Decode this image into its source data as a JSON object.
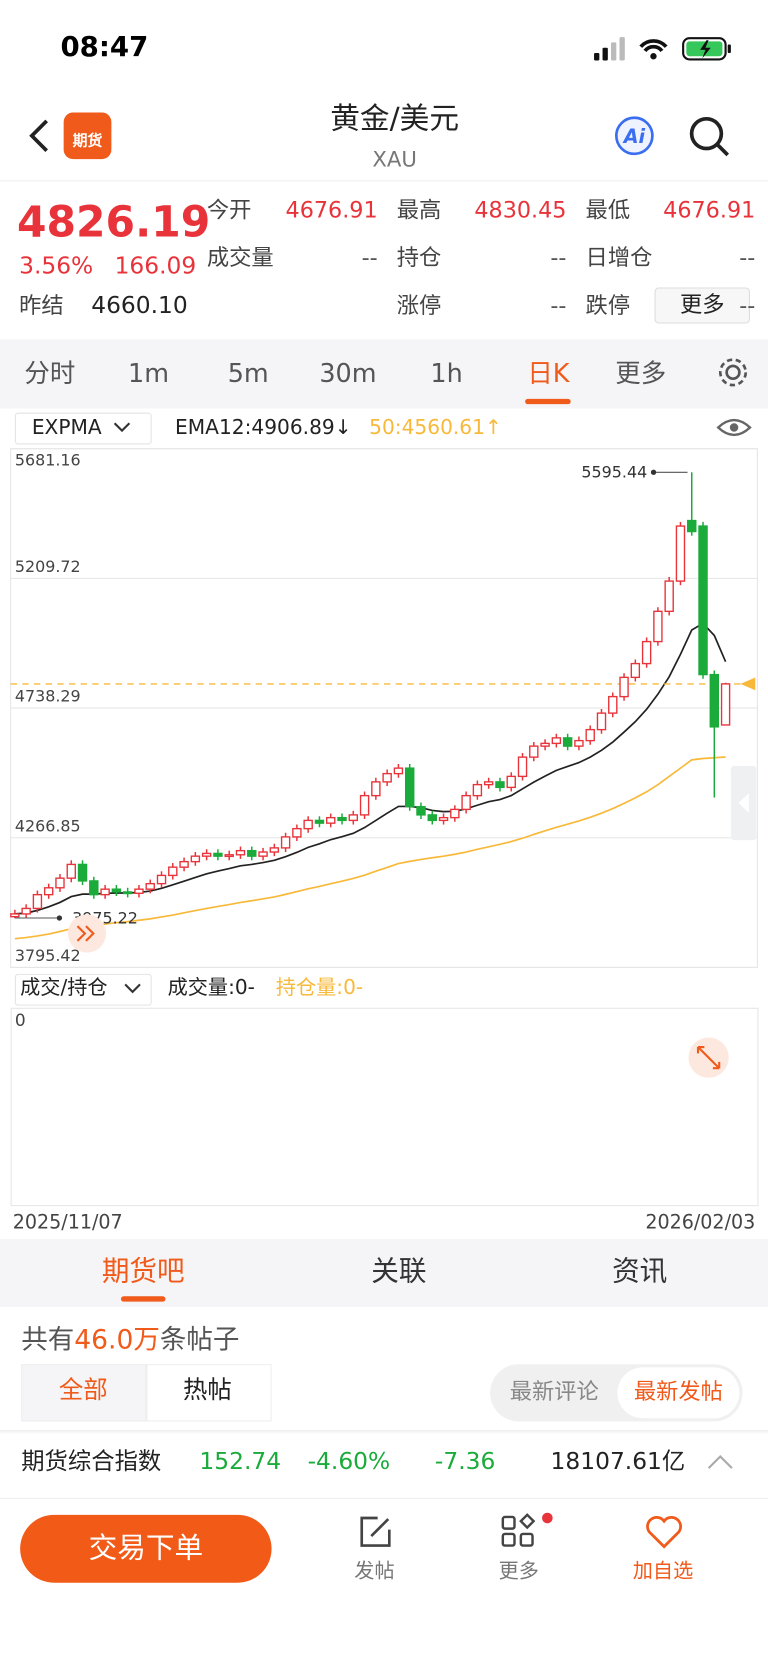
{
  "status": {
    "time": "08:47"
  },
  "header": {
    "badge": "期货",
    "title": "黄金/美元",
    "subtitle": "XAU"
  },
  "quote": {
    "price": "4826.19",
    "change_pct": "3.56%",
    "change": "166.09",
    "fields": [
      [
        {
          "label": "今开",
          "value": "4676.91"
        },
        {
          "label": "最高",
          "value": "4830.45"
        },
        {
          "label": "最低",
          "value": "4676.91"
        }
      ],
      [
        {
          "label": "成交量",
          "value": "--"
        },
        {
          "label": "持仓",
          "value": "--"
        },
        {
          "label": "日增仓",
          "value": "--"
        }
      ],
      [
        {
          "label": "涨停",
          "value": "--"
        },
        {
          "label": "跌停",
          "value": "--"
        }
      ]
    ],
    "prev_settle_label": "昨结",
    "prev_settle": "4660.10",
    "more": "更多"
  },
  "tabs": [
    "分时",
    "1m",
    "5m",
    "30m",
    "1h",
    "日K",
    "更多"
  ],
  "indicator": {
    "name": "EXPMA",
    "ema12": "EMA12:4906.89↓",
    "ema50": "50:4560.61↑"
  },
  "chart_data": {
    "type": "candlestick",
    "ylim": [
      3795.42,
      5681.16
    ],
    "yticks": [
      5681.16,
      5209.72,
      4738.29,
      4266.85,
      3795.42
    ],
    "grid": true,
    "x_start_label": "2025/11/07",
    "x_end_label": "2026/02/03",
    "up_color": "#e8333a",
    "down_color": "#1aab3a",
    "ema12_color": "#222222",
    "ema50_color": "#f8b93a",
    "high_label": 5595.44,
    "low_label": 3975.22,
    "last_price": 4826.19,
    "open": [
      3980,
      3990,
      4010,
      4060,
      4085,
      4120,
      4170,
      4110,
      4060,
      4080,
      4070,
      4065,
      4080,
      4100,
      4130,
      4160,
      4180,
      4200,
      4210,
      4200,
      4205,
      4220,
      4200,
      4215,
      4230,
      4270,
      4300,
      4330,
      4320,
      4340,
      4330,
      4350,
      4420,
      4470,
      4500,
      4520,
      4380,
      4350,
      4330,
      4340,
      4370,
      4420,
      4460,
      4470,
      4450,
      4490,
      4560,
      4600,
      4610,
      4630,
      4600,
      4620,
      4660,
      4720,
      4780,
      4850,
      4900,
      4980,
      5090,
      5200,
      5420,
      5400,
      4860,
      4676.91
    ],
    "high": [
      4005,
      4025,
      4075,
      4100,
      4135,
      4185,
      4185,
      4125,
      4095,
      4095,
      4085,
      4095,
      4115,
      4145,
      4175,
      4195,
      4215,
      4225,
      4225,
      4220,
      4235,
      4235,
      4230,
      4245,
      4285,
      4315,
      4345,
      4345,
      4355,
      4355,
      4365,
      4435,
      4485,
      4515,
      4535,
      4535,
      4395,
      4365,
      4355,
      4385,
      4435,
      4475,
      4485,
      4485,
      4505,
      4575,
      4615,
      4625,
      4645,
      4645,
      4635,
      4675,
      4735,
      4795,
      4865,
      4915,
      4995,
      5105,
      5215,
      5415,
      5595.44,
      5415,
      4875,
      4830.45
    ],
    "low": [
      3975.22,
      3975,
      3995,
      4045,
      4070,
      4105,
      4095,
      4045,
      4045,
      4055,
      4050,
      4050,
      4065,
      4085,
      4115,
      4145,
      4165,
      4185,
      4185,
      4185,
      4190,
      4185,
      4185,
      4200,
      4215,
      4255,
      4285,
      4305,
      4305,
      4315,
      4315,
      4335,
      4405,
      4455,
      4485,
      4365,
      4335,
      4315,
      4315,
      4325,
      4355,
      4405,
      4445,
      4435,
      4435,
      4475,
      4545,
      4585,
      4595,
      4585,
      4585,
      4605,
      4645,
      4705,
      4765,
      4835,
      4885,
      4965,
      5075,
      5185,
      5365,
      4845,
      4413,
      4676.91
    ],
    "close": [
      3990,
      4010,
      4060,
      4085,
      4120,
      4170,
      4110,
      4060,
      4080,
      4070,
      4065,
      4080,
      4100,
      4130,
      4160,
      4180,
      4200,
      4210,
      4200,
      4205,
      4220,
      4200,
      4215,
      4230,
      4270,
      4300,
      4330,
      4320,
      4340,
      4330,
      4350,
      4420,
      4470,
      4500,
      4520,
      4380,
      4350,
      4330,
      4340,
      4370,
      4420,
      4460,
      4470,
      4450,
      4490,
      4560,
      4600,
      4610,
      4630,
      4600,
      4620,
      4660,
      4720,
      4780,
      4850,
      4900,
      4980,
      5090,
      5200,
      5400,
      5380,
      4860,
      4670,
      4826.19
    ],
    "ema12": [
      3990,
      3993,
      4003,
      4016,
      4032,
      4053,
      4062,
      4062,
      4065,
      4066,
      4066,
      4068,
      4073,
      4083,
      4096,
      4109,
      4123,
      4136,
      4146,
      4155,
      4165,
      4170,
      4177,
      4185,
      4198,
      4214,
      4232,
      4245,
      4260,
      4271,
      4283,
      4304,
      4330,
      4356,
      4381,
      4381,
      4376,
      4366,
      4362,
      4363,
      4372,
      4385,
      4398,
      4406,
      4420,
      4445,
      4469,
      4491,
      4512,
      4526,
      4540,
      4560,
      4585,
      4615,
      4651,
      4689,
      4734,
      4789,
      4852,
      4934,
      5022,
      5046,
      5002,
      4906.89
    ],
    "ema50": [
      3900,
      3904,
      3910,
      3917,
      3926,
      3936,
      3943,
      3948,
      3953,
      3958,
      3962,
      3967,
      3972,
      3979,
      3986,
      3994,
      4002,
      4010,
      4017,
      4024,
      4032,
      4038,
      4045,
      4052,
      4061,
      4071,
      4081,
      4090,
      4100,
      4109,
      4119,
      4131,
      4145,
      4159,
      4173,
      4181,
      4188,
      4194,
      4200,
      4207,
      4215,
      4225,
      4234,
      4243,
      4253,
      4265,
      4279,
      4292,
      4305,
      4316,
      4328,
      4341,
      4356,
      4373,
      4392,
      4412,
      4434,
      4460,
      4490,
      4520,
      4550,
      4555,
      4558,
      4560.61
    ]
  },
  "volume": {
    "selector": "成交/持仓",
    "volume": "成交量:0-",
    "open_interest": "持仓量:0-",
    "axis": "0"
  },
  "community": {
    "tabs": [
      "期货吧",
      "关联",
      "资讯"
    ],
    "count_prefix": "共有",
    "count": "46.0万",
    "count_suffix": "条帖子",
    "filters": [
      "全部",
      "热帖"
    ],
    "sorts": [
      "最新评论",
      "最新发帖"
    ]
  },
  "ticker": {
    "name": "期货综合指数",
    "price": "152.74",
    "pct": "-4.60%",
    "change": "-7.36",
    "turnover": "18107.61亿"
  },
  "nav": {
    "trade": "交易下单",
    "items": [
      "发帖",
      "更多",
      "加自选"
    ]
  }
}
